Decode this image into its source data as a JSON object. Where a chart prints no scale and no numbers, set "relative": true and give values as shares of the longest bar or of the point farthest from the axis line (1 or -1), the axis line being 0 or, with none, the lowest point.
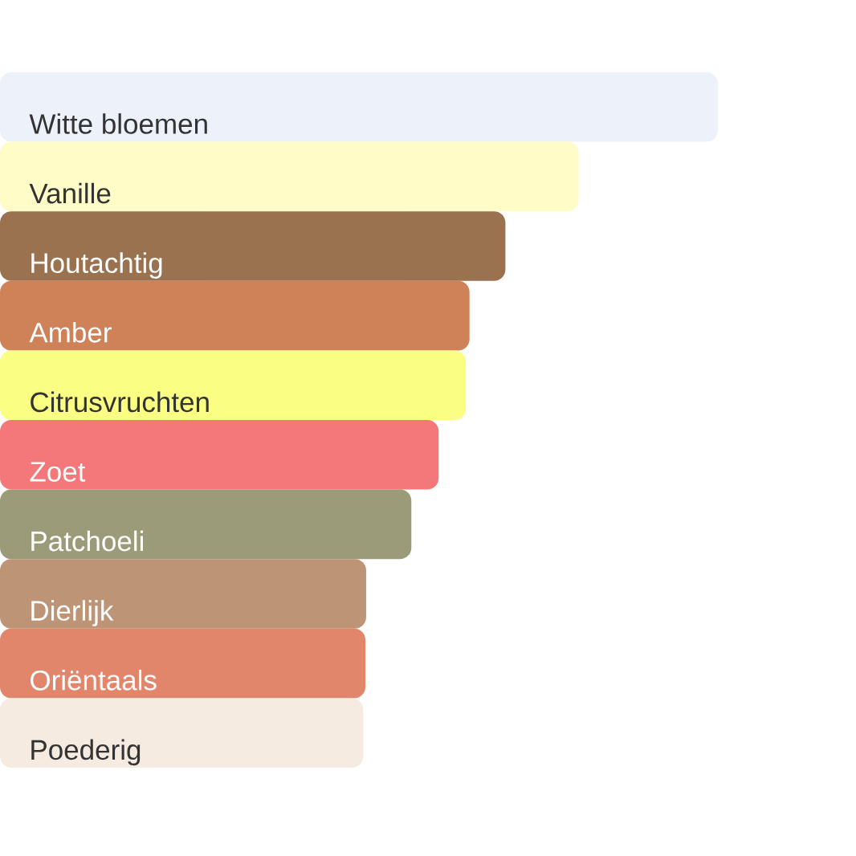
{
  "chart_data": {
    "type": "bar",
    "orientation": "horizontal",
    "relative": true,
    "categories": [
      "Witte bloemen",
      "Vanille",
      "Houtachtig",
      "Amber",
      "Citrusvruchten",
      "Zoet",
      "Patchoeli",
      "Dierlijk",
      "Oriëntaals",
      "Poederig"
    ],
    "values": [
      1,
      0.806,
      0.704,
      0.654,
      0.649,
      0.611,
      0.573,
      0.51,
      0.509,
      0.506
    ],
    "colors": [
      "#edf1fa",
      "#fffcc8",
      "#9a724f",
      "#cf8158",
      "#fafe83",
      "#f4777a",
      "#9b9b7a",
      "#bd9476",
      "#e2866b",
      "#f5ebe1"
    ]
  }
}
